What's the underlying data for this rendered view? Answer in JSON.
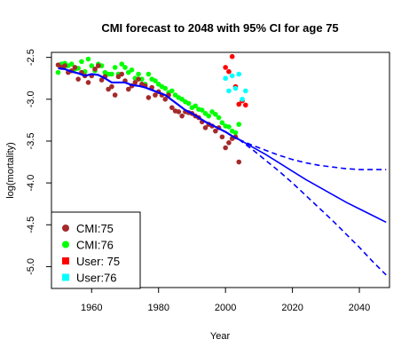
{
  "chart_data": {
    "type": "scatter",
    "title": "CMI forecast to 2048 with 95% CI for age 75",
    "xlabel": "Year",
    "ylabel": "log(mortality)",
    "xlim": [
      1948,
      2049
    ],
    "ylim": [
      -5.25,
      -2.44
    ],
    "x_ticks": [
      1960,
      1980,
      2000,
      2020,
      2040
    ],
    "y_ticks": [
      -2.5,
      -3.0,
      -3.5,
      -4.0,
      -4.5,
      -5.0
    ],
    "y_tick_labels": [
      "-2.5",
      "-3.0",
      "-3.5",
      "-4.0",
      "-4.5",
      "-5.0"
    ],
    "grid": false,
    "legend_position": "bottom-left",
    "legend": [
      {
        "label": "CMI:75",
        "color": "#a52a2a",
        "marker": "circle"
      },
      {
        "label": "CMI:76",
        "color": "#00ff00",
        "marker": "circle"
      },
      {
        "label": "User: 75",
        "color": "#ff0000",
        "marker": "square"
      },
      {
        "label": "User:76",
        "color": "#00ffff",
        "marker": "square"
      }
    ],
    "points": {
      "cmi75": {
        "color": "#a52a2a",
        "x": [
          1950,
          1951,
          1952,
          1953,
          1954,
          1955,
          1956,
          1957,
          1958,
          1959,
          1960,
          1961,
          1962,
          1963,
          1964,
          1965,
          1966,
          1967,
          1968,
          1969,
          1970,
          1971,
          1972,
          1973,
          1974,
          1975,
          1976,
          1977,
          1978,
          1979,
          1980,
          1981,
          1982,
          1983,
          1984,
          1985,
          1986,
          1987,
          1988,
          1989,
          1990,
          1991,
          1992,
          1993,
          1994,
          1995,
          1996,
          1997,
          1998,
          1999,
          2000,
          2001,
          2002,
          2003,
          2004
        ],
        "y": [
          -2.59,
          -2.62,
          -2.6,
          -2.68,
          -2.66,
          -2.62,
          -2.76,
          -2.68,
          -2.72,
          -2.8,
          -2.72,
          -2.64,
          -2.6,
          -2.77,
          -2.73,
          -2.88,
          -2.85,
          -2.95,
          -2.73,
          -2.7,
          -2.78,
          -2.88,
          -2.84,
          -2.8,
          -2.76,
          -2.82,
          -2.84,
          -2.98,
          -2.86,
          -2.95,
          -2.91,
          -2.95,
          -3.0,
          -2.95,
          -3.1,
          -3.14,
          -3.15,
          -3.2,
          -3.15,
          -3.16,
          -3.17,
          -3.2,
          -3.22,
          -3.27,
          -3.34,
          -3.3,
          -3.32,
          -3.38,
          -3.34,
          -3.45,
          -3.58,
          -3.52,
          -3.47,
          -3.45,
          -3.75
        ]
      },
      "cmi76": {
        "color": "#00ff00",
        "x": [
          1950,
          1951,
          1952,
          1953,
          1954,
          1955,
          1956,
          1957,
          1958,
          1959,
          1960,
          1961,
          1962,
          1963,
          1964,
          1965,
          1966,
          1967,
          1968,
          1969,
          1970,
          1971,
          1972,
          1973,
          1974,
          1975,
          1976,
          1977,
          1978,
          1979,
          1980,
          1981,
          1982,
          1983,
          1984,
          1985,
          1986,
          1987,
          1988,
          1989,
          1990,
          1991,
          1992,
          1993,
          1994,
          1995,
          1996,
          1997,
          1998,
          1999,
          2000,
          2001,
          2002,
          2003,
          2004
        ],
        "y": [
          -2.68,
          -2.58,
          -2.57,
          -2.6,
          -2.58,
          -2.64,
          -2.63,
          -2.55,
          -2.67,
          -2.52,
          -2.6,
          -2.66,
          -2.58,
          -2.6,
          -2.68,
          -2.7,
          -2.7,
          -2.62,
          -2.7,
          -2.58,
          -2.62,
          -2.68,
          -2.65,
          -2.75,
          -2.7,
          -2.76,
          -2.82,
          -2.7,
          -2.76,
          -2.78,
          -2.82,
          -2.85,
          -2.87,
          -2.92,
          -2.9,
          -2.95,
          -2.98,
          -3.0,
          -3.03,
          -3.05,
          -3.1,
          -3.08,
          -3.12,
          -3.13,
          -3.17,
          -3.2,
          -3.15,
          -3.18,
          -3.22,
          -3.28,
          -3.32,
          -3.33,
          -3.38,
          -3.4,
          -3.3
        ]
      },
      "user75": {
        "color": "#ff0000",
        "x": [
          2000,
          2001,
          2002,
          2003,
          2004,
          2005,
          2006
        ],
        "y": [
          -2.62,
          -2.67,
          -2.49,
          -2.85,
          -3.06,
          -3.02,
          -3.07
        ]
      },
      "user76": {
        "color": "#00ffff",
        "x": [
          2000,
          2001,
          2002,
          2003,
          2004,
          2005,
          2006
        ],
        "y": [
          -2.75,
          -2.9,
          -2.72,
          -2.87,
          -2.7,
          -3.0,
          -2.9
        ]
      }
    },
    "lines": {
      "historical_fit": {
        "color": "#0000ff",
        "style": "solid",
        "x": [
          1950,
          1952,
          1954,
          1956,
          1958,
          1960,
          1962,
          1964,
          1966,
          1968,
          1970,
          1972,
          1974,
          1976,
          1978,
          1980,
          1982,
          1984,
          1986,
          1988,
          1990,
          1992,
          1994,
          1996,
          1998,
          2000,
          2002,
          2004
        ],
        "y": [
          -2.63,
          -2.64,
          -2.67,
          -2.69,
          -2.72,
          -2.7,
          -2.71,
          -2.75,
          -2.8,
          -2.8,
          -2.8,
          -2.83,
          -2.84,
          -2.86,
          -2.89,
          -2.92,
          -2.95,
          -3.01,
          -3.07,
          -3.13,
          -3.17,
          -3.22,
          -3.27,
          -3.31,
          -3.35,
          -3.39,
          -3.44,
          -3.48
        ]
      },
      "forecast_central": {
        "color": "#0000ff",
        "style": "solid",
        "x": [
          2004,
          2008,
          2012,
          2016,
          2020,
          2024,
          2028,
          2032,
          2036,
          2040,
          2044,
          2048
        ],
        "y": [
          -3.48,
          -3.57,
          -3.66,
          -3.76,
          -3.86,
          -3.96,
          -4.05,
          -4.14,
          -4.23,
          -4.31,
          -4.39,
          -4.47
        ]
      },
      "forecast_ci_upper": {
        "color": "#0000ff",
        "style": "dashed",
        "x": [
          2004,
          2008,
          2012,
          2016,
          2020,
          2024,
          2028,
          2032,
          2036,
          2040,
          2044,
          2048
        ],
        "y": [
          -3.48,
          -3.55,
          -3.61,
          -3.67,
          -3.72,
          -3.76,
          -3.79,
          -3.81,
          -3.83,
          -3.84,
          -3.84,
          -3.84
        ]
      },
      "forecast_ci_lower": {
        "color": "#0000ff",
        "style": "dashed",
        "x": [
          2004,
          2008,
          2012,
          2016,
          2020,
          2024,
          2028,
          2032,
          2036,
          2040,
          2044,
          2048
        ],
        "y": [
          -3.48,
          -3.6,
          -3.73,
          -3.86,
          -4.0,
          -4.15,
          -4.3,
          -4.45,
          -4.61,
          -4.77,
          -4.94,
          -5.1
        ]
      }
    }
  }
}
